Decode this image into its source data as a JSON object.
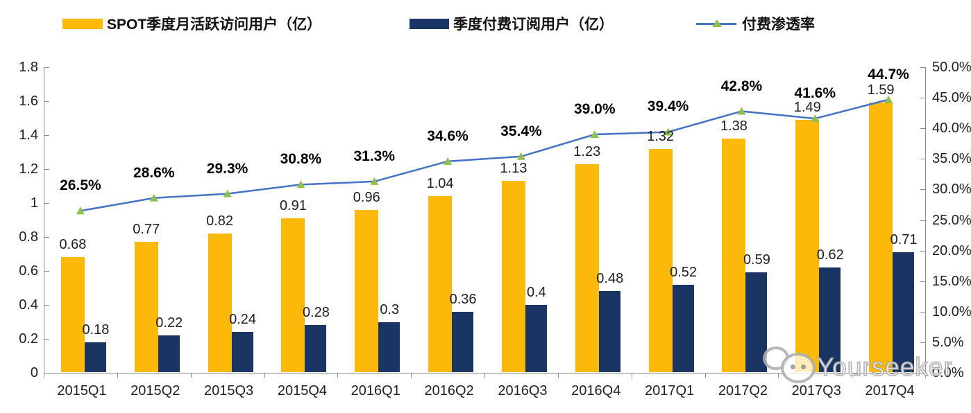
{
  "chart_data": {
    "type": "bar",
    "subtype": "combo-bar-line-dual-axis",
    "categories": [
      "2015Q1",
      "2015Q2",
      "2015Q3",
      "2015Q4",
      "2016Q1",
      "2016Q2",
      "2016Q3",
      "2016Q4",
      "2017Q1",
      "2017Q2",
      "2017Q3",
      "2017Q4"
    ],
    "series": [
      {
        "name": "SPOT季度月活跃访问用户（亿）",
        "type": "bar",
        "axis": "left",
        "color": "#FDB90A",
        "values": [
          0.68,
          0.77,
          0.82,
          0.91,
          0.96,
          1.04,
          1.13,
          1.23,
          1.32,
          1.38,
          1.49,
          1.59
        ],
        "labels": [
          "0.68",
          "0.77",
          "0.82",
          "0.91",
          "0.96",
          "1.04",
          "1.13",
          "1.23",
          "1.32",
          "1.38",
          "1.49",
          "1.59"
        ]
      },
      {
        "name": "季度付费订阅用户（亿）",
        "type": "bar",
        "axis": "left",
        "color": "#1A3563",
        "values": [
          0.18,
          0.22,
          0.24,
          0.28,
          0.3,
          0.36,
          0.4,
          0.48,
          0.52,
          0.59,
          0.62,
          0.71
        ],
        "labels": [
          "0.18",
          "0.22",
          "0.24",
          "0.28",
          "0.3",
          "0.36",
          "0.4",
          "0.48",
          "0.52",
          "0.59",
          "0.62",
          "0.71"
        ]
      },
      {
        "name": "付费渗透率",
        "type": "line",
        "axis": "right",
        "color": "#4472C4",
        "marker": "triangle",
        "marker_color": "#8FC04E",
        "values": [
          26.5,
          28.6,
          29.3,
          30.8,
          31.3,
          34.6,
          35.4,
          39.0,
          39.4,
          42.8,
          41.6,
          44.7
        ],
        "labels": [
          "26.5%",
          "28.6%",
          "29.3%",
          "30.8%",
          "31.3%",
          "34.6%",
          "35.4%",
          "39.0%",
          "39.4%",
          "42.8%",
          "41.6%",
          "44.7%"
        ]
      }
    ],
    "left_axis": {
      "min": 0,
      "max": 1.8,
      "ticks": [
        "1.8",
        "1.6",
        "1.4",
        "1.2",
        "1",
        "0.8",
        "0.6",
        "0.4",
        "0.2",
        "0"
      ]
    },
    "right_axis": {
      "min": 0,
      "max": 50,
      "ticks": [
        "50.0%",
        "45.0%",
        "40.0%",
        "35.0%",
        "30.0%",
        "25.0%",
        "20.0%",
        "15.0%",
        "10.0%",
        "5.0%",
        "0.0%"
      ]
    },
    "grid": false,
    "legend_position": "top",
    "title": "",
    "xlabel": "",
    "ylabel": ""
  },
  "watermark": {
    "text": "Yourseeker",
    "icon": "wechat-icon"
  }
}
